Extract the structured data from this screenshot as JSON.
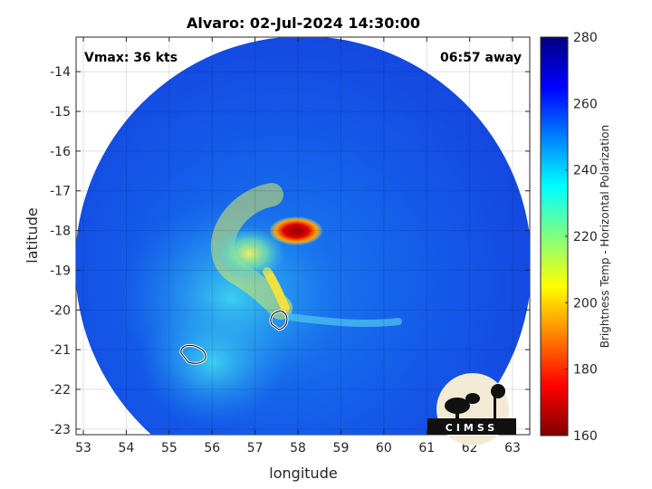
{
  "chart_data": {
    "type": "heatmap",
    "title": "Alvaro: 02-Jul-2024 14:30:00",
    "xlabel": "longitude",
    "ylabel": "latitude",
    "xlim": [
      52.83,
      63.4
    ],
    "ylim": [
      -23.14,
      -13.13
    ],
    "xticks": [
      53,
      54,
      55,
      56,
      57,
      58,
      59,
      60,
      61,
      62,
      63
    ],
    "yticks": [
      -14,
      -15,
      -16,
      -17,
      -18,
      -19,
      -20,
      -21,
      -22,
      -23
    ],
    "grid": true,
    "colorbar": {
      "label": "Brightness Temp - Horizontal Polarization",
      "range": [
        160,
        280
      ],
      "ticks": [
        160,
        180,
        200,
        220,
        240,
        260,
        280
      ],
      "colormap": "jet",
      "colors": [
        "#800000",
        "#ff0000",
        "#ff8000",
        "#ffff00",
        "#80ff80",
        "#00ffff",
        "#0080ff",
        "#0000ff",
        "#000080"
      ]
    },
    "features": [
      {
        "name": "cold core",
        "lon": 58.0,
        "lat": -18.0,
        "value": 165
      },
      {
        "name": "spiral band",
        "lon": 57.3,
        "lat": -19.2,
        "value": 210
      }
    ],
    "annotations": {
      "vmax": "Vmax: 36 kts",
      "time_away": "06:57 away"
    },
    "logo": "CIMSS"
  }
}
